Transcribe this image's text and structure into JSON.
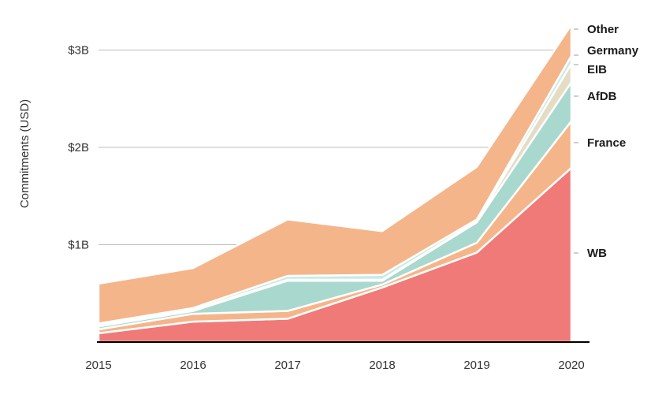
{
  "chart_data": {
    "type": "area",
    "stacked": true,
    "title": "",
    "xlabel": "",
    "ylabel": "Commitments (USD)",
    "x": [
      "2015",
      "2016",
      "2017",
      "2018",
      "2019",
      "2020"
    ],
    "ylim": [
      0,
      3.45
    ],
    "y_ticks": [
      {
        "value": 1,
        "label": "$1B"
      },
      {
        "value": 2,
        "label": "$2B"
      },
      {
        "value": 3,
        "label": "$3B"
      }
    ],
    "y_unit": "billion USD",
    "grid": "horizontal",
    "legend": "right-inline",
    "series": [
      {
        "name": "WB",
        "color": "#f07a78",
        "values": [
          0.09,
          0.21,
          0.24,
          0.56,
          0.92,
          1.79
        ]
      },
      {
        "name": "France",
        "color": "#f5b58a",
        "values": [
          0.04,
          0.08,
          0.08,
          0.03,
          0.1,
          0.48
        ]
      },
      {
        "name": "AfDB",
        "color": "#a9d8cf",
        "values": [
          0.03,
          0.03,
          0.31,
          0.04,
          0.21,
          0.4
        ]
      },
      {
        "name": "EIB",
        "color": "#e4ddc4",
        "values": [
          0.01,
          0.01,
          0.01,
          0.01,
          0.01,
          0.19
        ]
      },
      {
        "name": "Germany",
        "color": "#c8ebe4",
        "values": [
          0.02,
          0.02,
          0.04,
          0.05,
          0.02,
          0.08
        ]
      },
      {
        "name": "Other",
        "color": "#f5b58a",
        "values": [
          0.41,
          0.41,
          0.58,
          0.45,
          0.54,
          0.32
        ]
      }
    ]
  }
}
